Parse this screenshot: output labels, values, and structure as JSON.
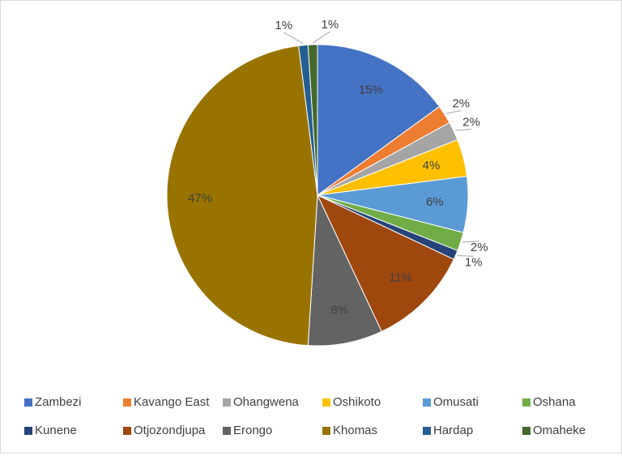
{
  "chart_data": {
    "type": "pie",
    "categories": [
      "Zambezi",
      "Kavango East",
      "Ohangwena",
      "Oshikoto",
      "Omusati",
      "Oshana",
      "Kunene",
      "Otjozondjupa",
      "Erongo",
      "Khomas",
      "Hardap",
      "Omaheke"
    ],
    "values": [
      15,
      2,
      2,
      4,
      6,
      2,
      1,
      11,
      8,
      47,
      1,
      1
    ],
    "value_labels": [
      "15%",
      "2%",
      "2%",
      "4%",
      "6%",
      "2%",
      "1%",
      "11%",
      "8%",
      "47%",
      "1%",
      "1%"
    ],
    "colors": [
      "#4472c4",
      "#ed7d31",
      "#a5a5a5",
      "#ffc000",
      "#5b9bd5",
      "#70ad47",
      "#264478",
      "#9e480e",
      "#636363",
      "#997300",
      "#255e91",
      "#43682b"
    ],
    "legend": "bottom"
  }
}
